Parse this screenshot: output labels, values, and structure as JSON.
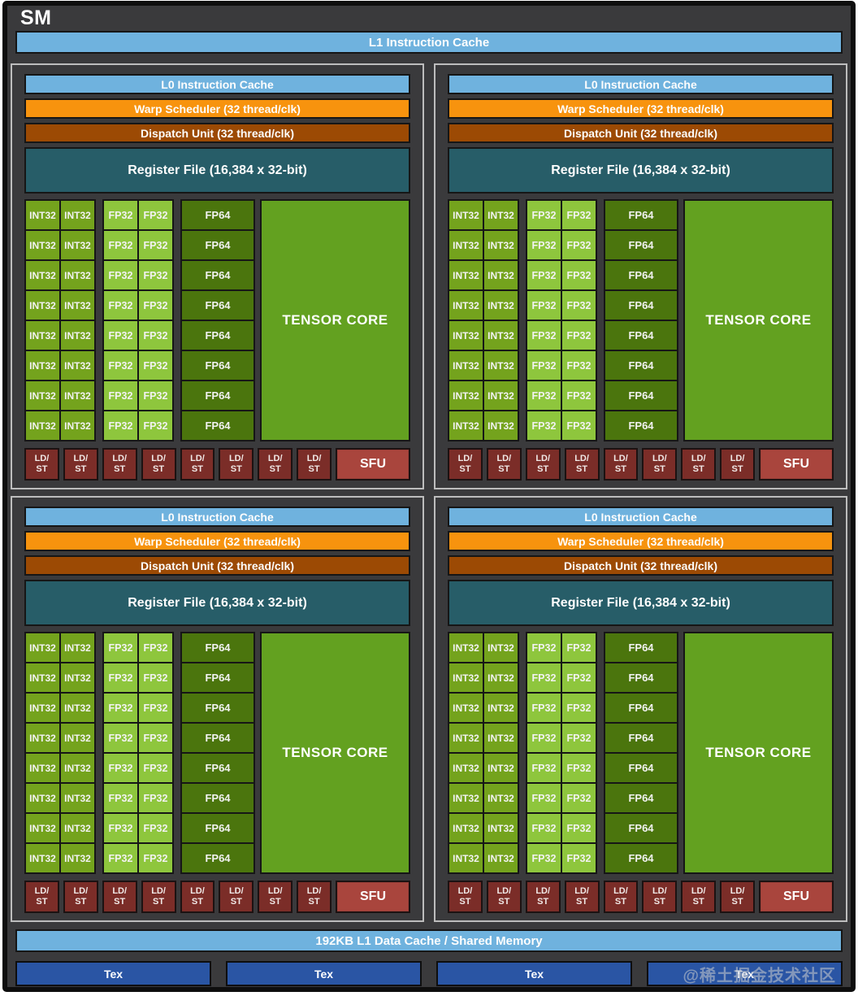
{
  "title": "SM",
  "header": {
    "l1_instruction_cache": "L1 Instruction Cache"
  },
  "quadrant": {
    "count": 4,
    "l0_instruction_cache": "L0 Instruction Cache",
    "warp_scheduler": "Warp Scheduler (32 thread/clk)",
    "dispatch_unit": "Dispatch Unit (32 thread/clk)",
    "register_file": "Register File (16,384 x 32-bit)",
    "core_rows": 8,
    "int32_label": "INT32",
    "fp32_label": "FP32",
    "fp64_label": "FP64",
    "tensor_core_label": "TENSOR CORE",
    "ldst_count": 8,
    "ldst_line1": "LD/",
    "ldst_line2": "ST",
    "sfu_label": "SFU"
  },
  "footer": {
    "l1_data_cache": "192KB L1 Data Cache / Shared Memory",
    "tex_count": 4,
    "tex_label": "Tex",
    "watermark": "@稀土掘金技术社区"
  },
  "colors": {
    "background": "#3a3a3c",
    "frame": "#0e0e0e",
    "cache_blue": "#6fb2de",
    "warp_orange": "#f7930e",
    "dispatch_brown": "#9c4a04",
    "register_teal": "#275d68",
    "int32_green": "#74a31d",
    "fp32_green": "#8ec63d",
    "fp64_green": "#4b750d",
    "tensor_green": "#63a120",
    "ldst_red": "#7b2d28",
    "sfu_red": "#a9453d",
    "tex_blue": "#2a55a4",
    "quadrant_border": "#bdbdbd",
    "cell_border": "#161616",
    "text": "#ffffff"
  }
}
